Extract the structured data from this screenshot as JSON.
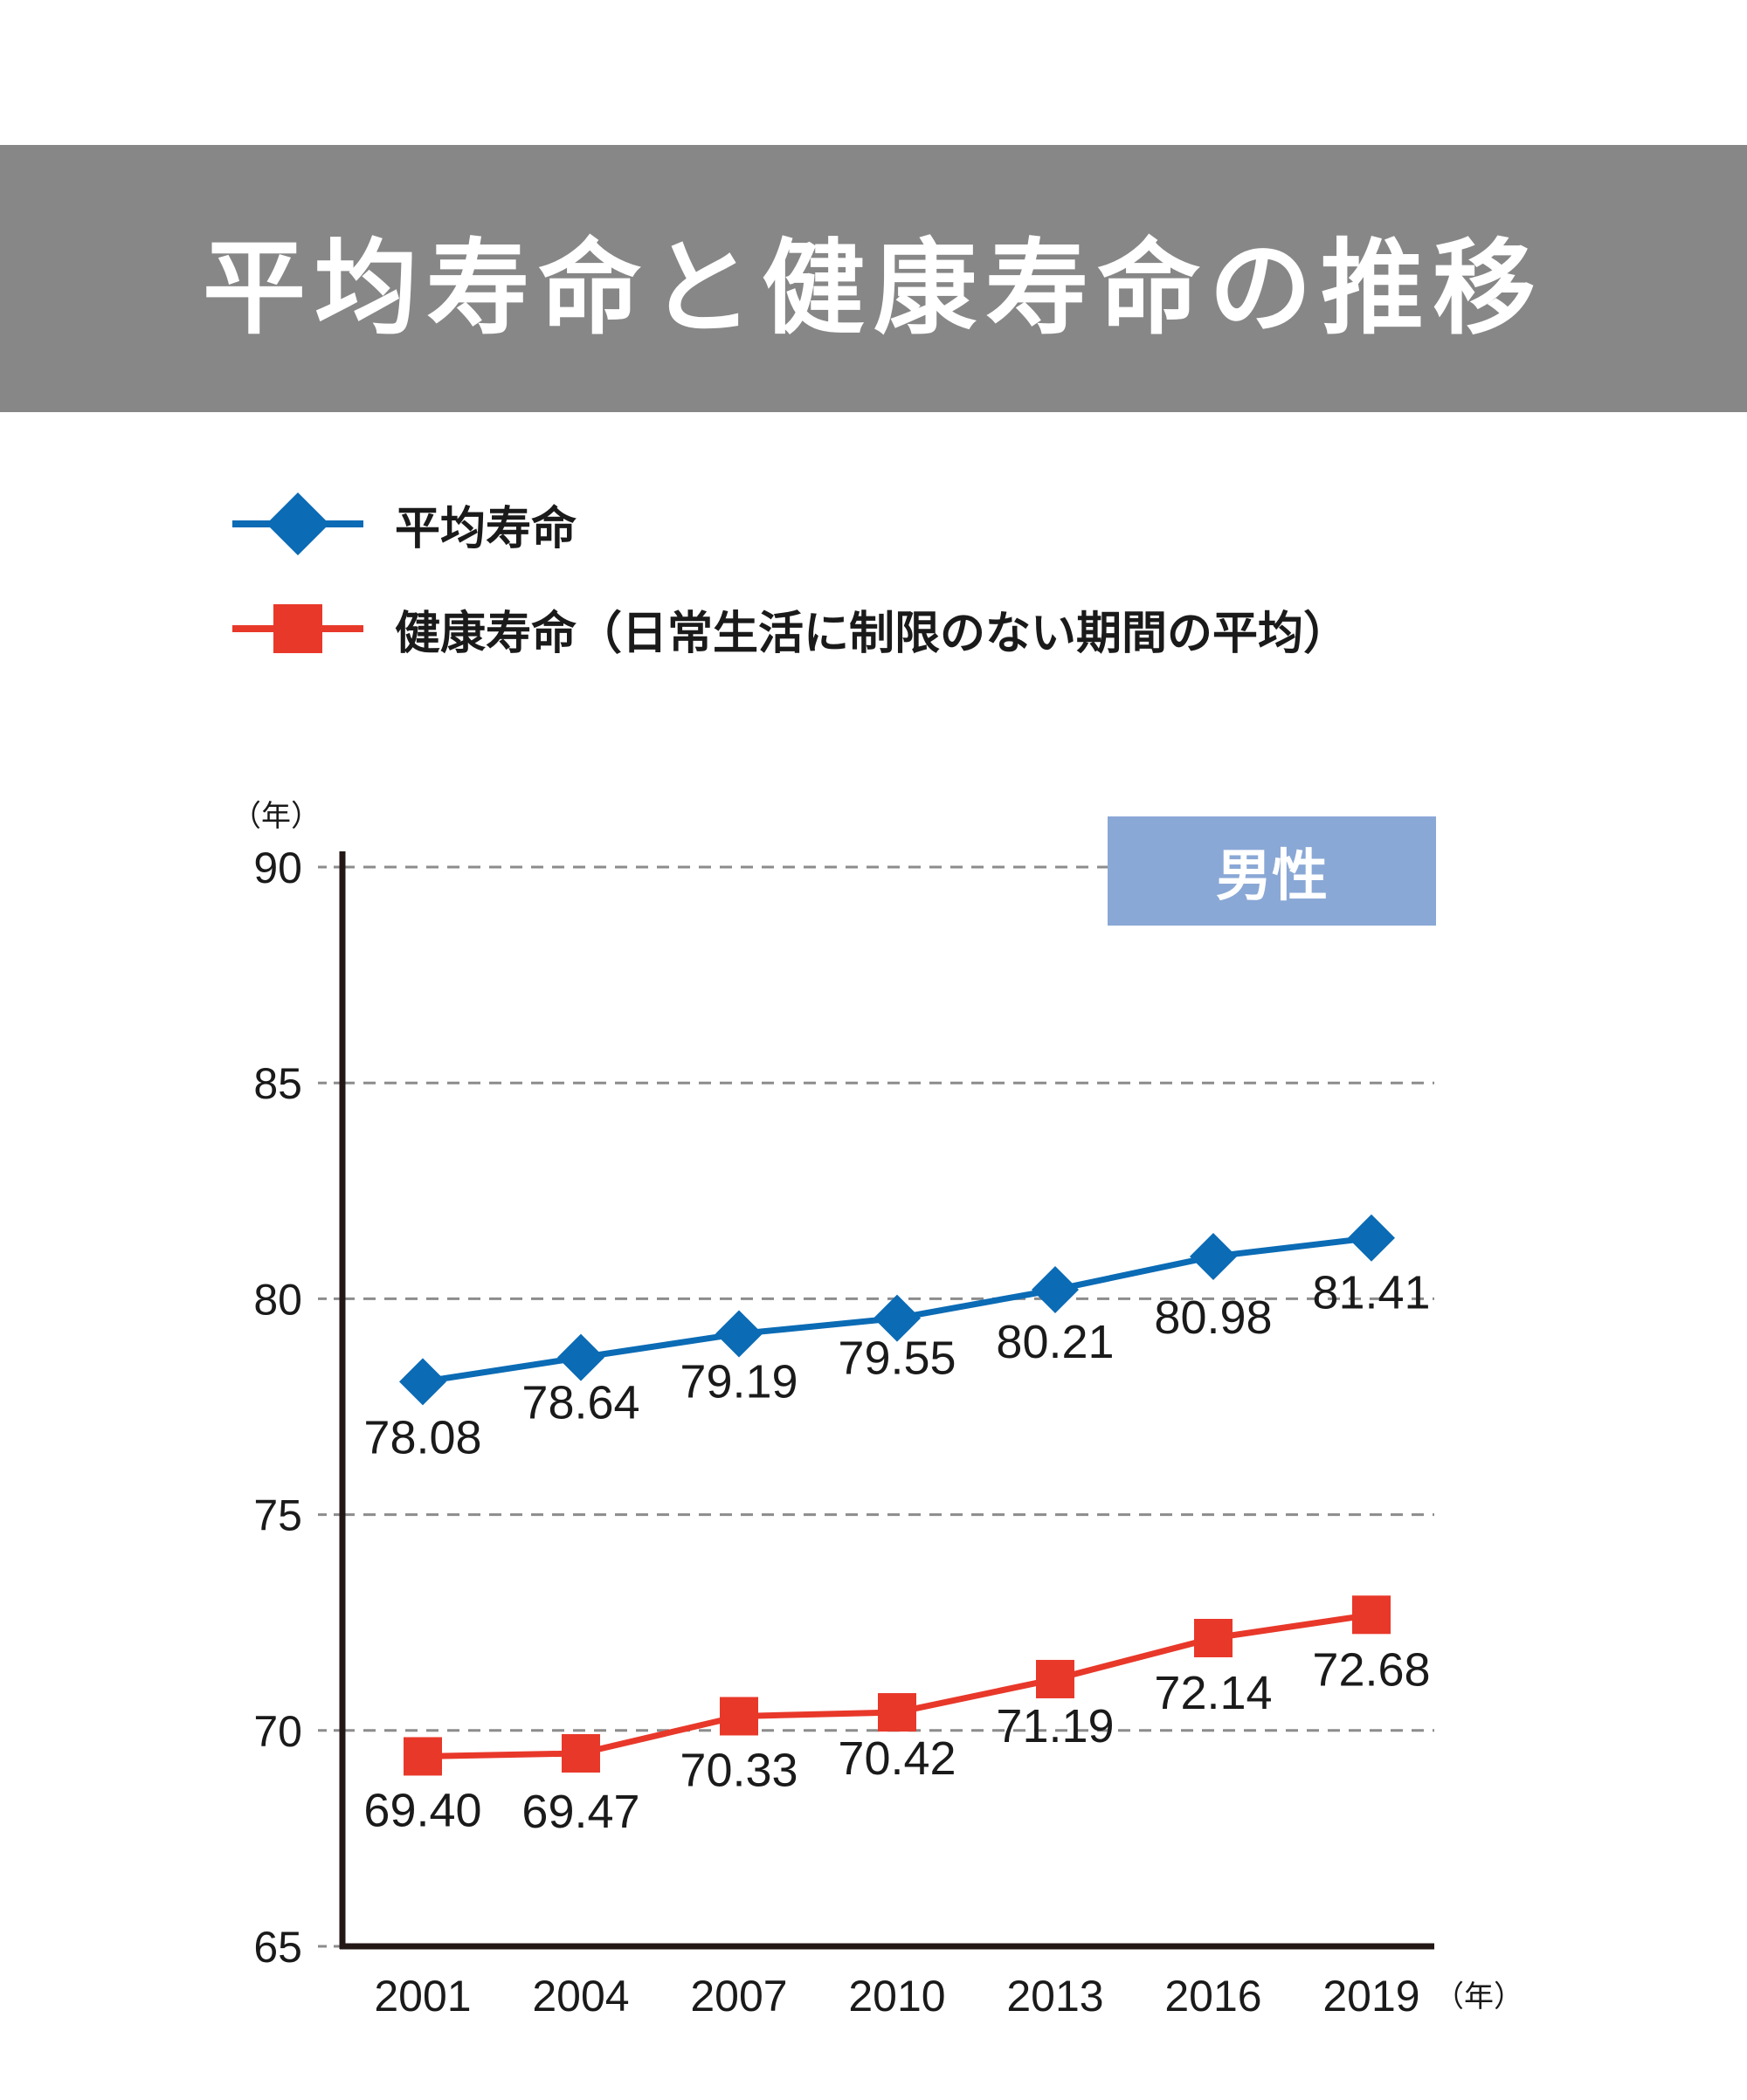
{
  "title": "平均寿命と健康寿命の推移",
  "legend": [
    {
      "label": "平均寿命",
      "color": "#0b6bb5",
      "marker": "diamond"
    },
    {
      "label": "健康寿命（日常生活に制限のない期間の平均）",
      "color": "#e8382a",
      "marker": "square"
    }
  ],
  "badge": "男性",
  "chart_data": {
    "type": "line",
    "title": "平均寿命と健康寿命の推移",
    "ylabel": "（年）",
    "xlabel": "（年）",
    "categories": [
      "2001",
      "2004",
      "2007",
      "2010",
      "2013",
      "2016",
      "2019"
    ],
    "ylim": [
      65,
      90
    ],
    "yticks": [
      65,
      70,
      75,
      80,
      85,
      90
    ],
    "grid": true,
    "series": [
      {
        "name": "平均寿命",
        "color": "#0b6bb5",
        "marker": "diamond",
        "values": [
          78.08,
          78.64,
          79.19,
          79.55,
          80.21,
          80.98,
          81.41
        ],
        "labels": [
          "78.08",
          "78.64",
          "79.19",
          "79.55",
          "80.21",
          "80.98",
          "81.41"
        ]
      },
      {
        "name": "健康寿命（日常生活に制限のない期間の平均）",
        "color": "#e8382a",
        "marker": "square",
        "values": [
          69.4,
          69.47,
          70.33,
          70.42,
          71.19,
          72.14,
          72.68
        ],
        "labels": [
          "69.40",
          "69.47",
          "70.33",
          "70.42",
          "71.19",
          "72.14",
          "72.68"
        ]
      }
    ]
  }
}
